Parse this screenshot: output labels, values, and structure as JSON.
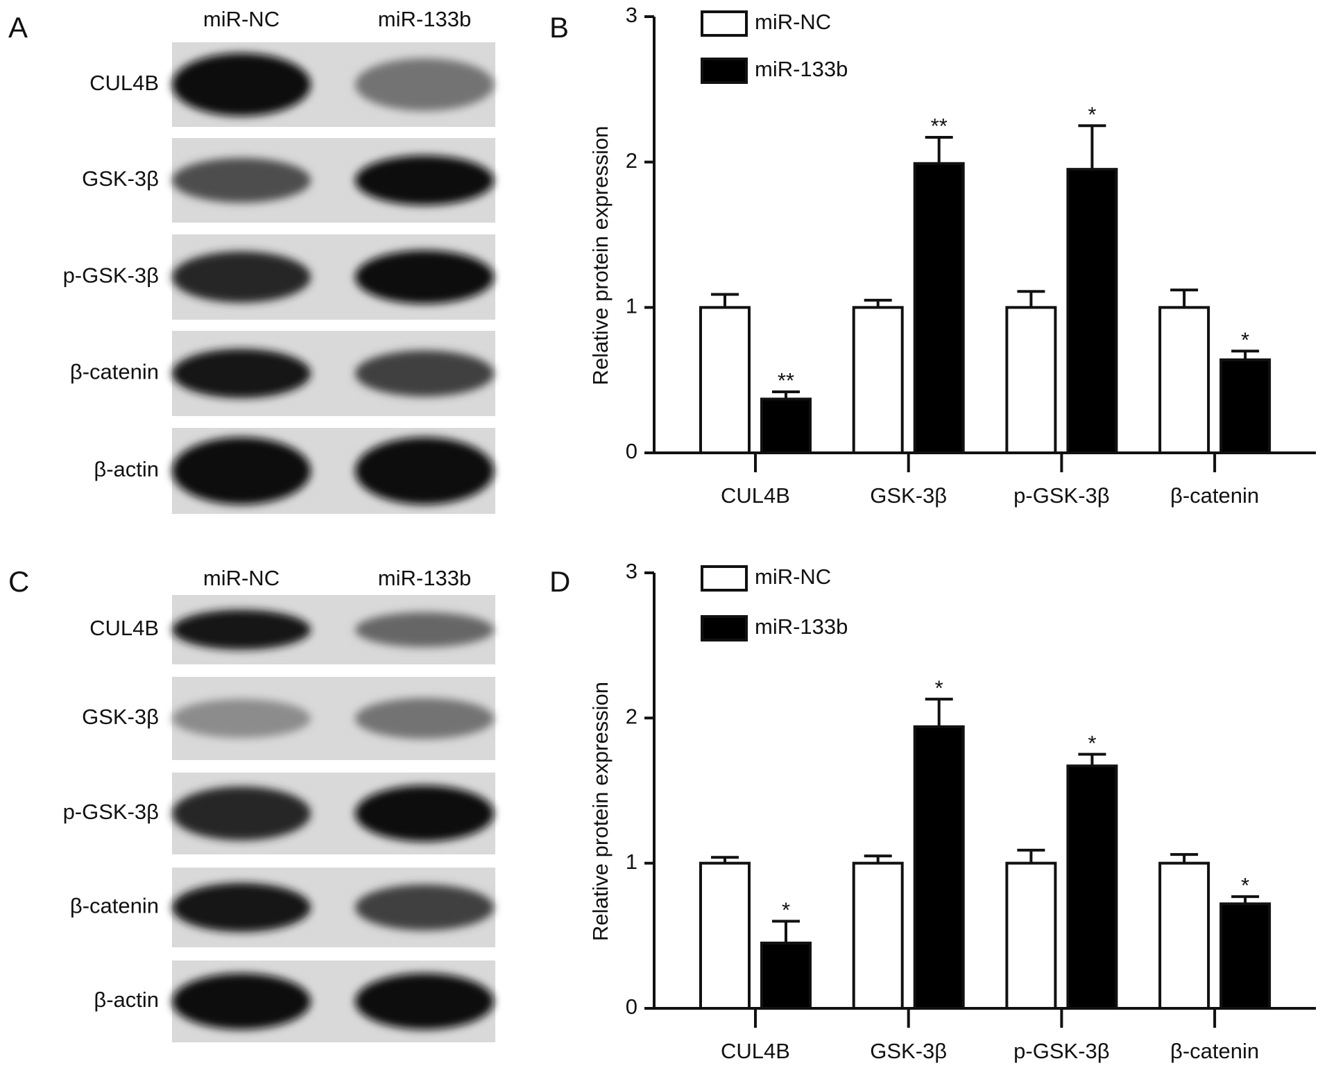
{
  "blots": [
    {
      "panel": "A",
      "lanes": [
        "miR-NC",
        "miR-133b"
      ],
      "bands": [
        "CUL4B",
        "GSK-3β",
        "p-GSK-3β",
        "β-catenin",
        "β-actin"
      ]
    },
    {
      "panel": "C",
      "lanes": [
        "miR-NC",
        "miR-133b"
      ],
      "bands": [
        "CUL4B",
        "GSK-3β",
        "p-GSK-3β",
        "β-catenin",
        "β-actin"
      ]
    }
  ],
  "chart_data": [
    {
      "type": "bar",
      "panel": "B",
      "ylabel": "Relative protein expression",
      "categories": [
        "CUL4B",
        "GSK-3β",
        "p-GSK-3β",
        "β-catenin"
      ],
      "series": [
        {
          "name": "miR-NC",
          "color": "#ffffff",
          "values": [
            1,
            1,
            1,
            1
          ],
          "errors": [
            0.09,
            0.05,
            0.11,
            0.12
          ]
        },
        {
          "name": "miR-133b",
          "color": "#000000",
          "values": [
            0.37,
            1.99,
            1.95,
            0.64
          ],
          "errors": [
            0.05,
            0.18,
            0.3,
            0.06
          ],
          "annotations": [
            "**",
            "**",
            "*",
            "*"
          ]
        }
      ],
      "ylim": [
        0,
        3
      ],
      "yticks": [
        0,
        1,
        2,
        3
      ],
      "legend": "top-left"
    },
    {
      "type": "bar",
      "panel": "D",
      "ylabel": "Relative protein expression",
      "categories": [
        "CUL4B",
        "GSK-3β",
        "p-GSK-3β",
        "β-catenin"
      ],
      "series": [
        {
          "name": "miR-NC",
          "color": "#ffffff",
          "values": [
            1,
            1,
            1,
            1
          ],
          "errors": [
            0.04,
            0.05,
            0.09,
            0.06
          ]
        },
        {
          "name": "miR-133b",
          "color": "#000000",
          "values": [
            0.45,
            1.94,
            1.67,
            0.72
          ],
          "errors": [
            0.15,
            0.19,
            0.08,
            0.05
          ],
          "annotations": [
            "*",
            "*",
            "*",
            "*"
          ]
        }
      ],
      "ylim": [
        0,
        3
      ],
      "yticks": [
        0,
        1,
        2,
        3
      ],
      "legend": "top-left"
    }
  ]
}
